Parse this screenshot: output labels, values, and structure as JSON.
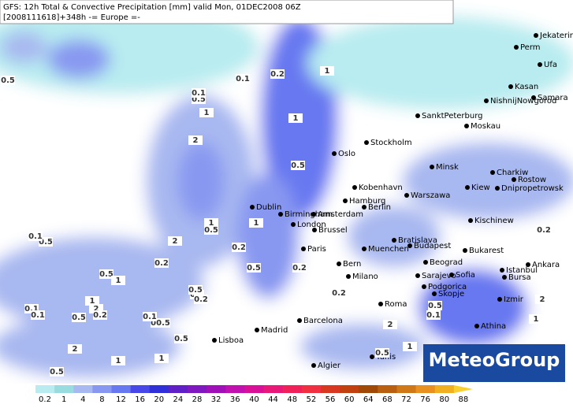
{
  "header": {
    "line1": "GFS: 12h Total & Convective Precipitation [mm] valid Mon, 01DEC2008 06Z",
    "line2": "[2008111618]+348h -= Europe =-"
  },
  "logo": "MeteoGroup",
  "cities": [
    "Jekaterinburg",
    "Perm",
    "Ufa",
    "Kasan",
    "Samara",
    "NishnijNowgorod",
    "SanktPeterburg",
    "Moskau",
    "Stockholm",
    "Oslo",
    "Minsk",
    "Charkiw",
    "Rostow",
    "Kiew",
    "Dnipropetrowsk",
    "Kobenhavn",
    "Warszawa",
    "Hamburg",
    "Berlin",
    "Dublin",
    "Birmingham",
    "Amsterdam",
    "London",
    "Brussel",
    "Kischinew",
    "Bratislava",
    "Budapest",
    "Muenchen",
    "Paris",
    "Bukarest",
    "Beograd",
    "Bern",
    "Milano",
    "Istanbul",
    "Ankara",
    "Bursa",
    "Sarajevo",
    "Sofia",
    "Podgorica",
    "Skopje",
    "Izmir",
    "Roma",
    "Athina",
    "Barcelona",
    "Madrid",
    "Lisboa",
    "Algier",
    "Tunis"
  ],
  "contour_labels": [
    "0.5",
    "0.1",
    "0.2",
    "1",
    "0.5",
    "1",
    "0.1",
    "2",
    "1",
    "0.5",
    "1",
    "0.5",
    "2",
    "0.5",
    "0.1",
    "1",
    "0.2",
    "0.2",
    "0.5",
    "0.2",
    "0.5",
    "1",
    "0.1",
    "0.5",
    "1",
    "2",
    "0.1",
    "0.5",
    "0.2",
    "0.5",
    "0.1",
    "0.2",
    "0.5",
    "2",
    "0.5",
    "0.1",
    "0.5",
    "1",
    "1",
    "0.1",
    "0.5",
    "2",
    "2",
    "1",
    "0.5",
    "0.2",
    "1",
    "0.2"
  ],
  "colorbar": {
    "ticks": [
      "0.2",
      "1",
      "4",
      "8",
      "12",
      "16",
      "20",
      "24",
      "28",
      "32",
      "36",
      "40",
      "44",
      "48",
      "52",
      "56",
      "60",
      "64",
      "68",
      "72",
      "76",
      "80",
      "88"
    ],
    "colors": [
      "#b8ecf0",
      "#98dce0",
      "#a8b8f0",
      "#8898f0",
      "#6878f0",
      "#4848e8",
      "#3030d8",
      "#6020c8",
      "#8018c0",
      "#a010b8",
      "#c010b0",
      "#d81098",
      "#e81878",
      "#f02058",
      "#f03040",
      "#d83820",
      "#c04010",
      "#a04808",
      "#b86010",
      "#d07818",
      "#e89020",
      "#f0b020",
      "#f8d030"
    ]
  }
}
